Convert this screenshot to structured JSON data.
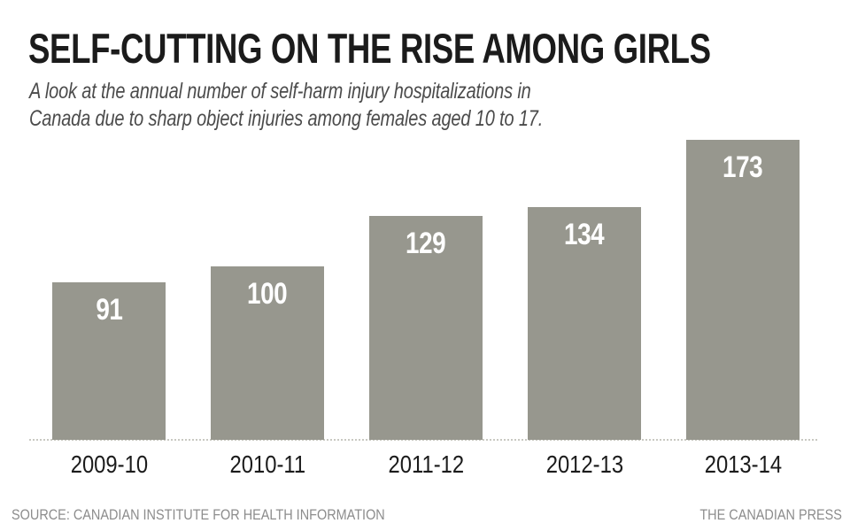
{
  "header": {
    "title": "SELF-CUTTING ON THE RISE AMONG GIRLS",
    "subtitle": "A look at the annual number of self-harm injury hospitalizations in\nCanada due to sharp object injuries among females aged 10 to 17."
  },
  "chart_data": {
    "type": "bar",
    "title": "SELF-CUTTING ON THE RISE AMONG GIRLS",
    "subtitle": "A look at the annual number of self-harm injury hospitalizations in Canada due to sharp object injuries among females aged 10 to 17.",
    "categories": [
      "2009-10",
      "2010-11",
      "2011-12",
      "2012-13",
      "2013-14"
    ],
    "values": [
      91,
      100,
      129,
      134,
      173
    ],
    "xlabel": "",
    "ylabel": "",
    "ylim": [
      0,
      173
    ],
    "grid": false,
    "legend": "none",
    "value_labels": "inside-top",
    "bar_color": "#97978e",
    "value_label_color": "#ffffff",
    "axis_line_style": "dotted",
    "axis_line_color": "#c9c9c2"
  },
  "footer": {
    "source": "SOURCE: CANADIAN INSTITUTE FOR HEALTH INFORMATION",
    "credit": "THE CANADIAN PRESS"
  }
}
